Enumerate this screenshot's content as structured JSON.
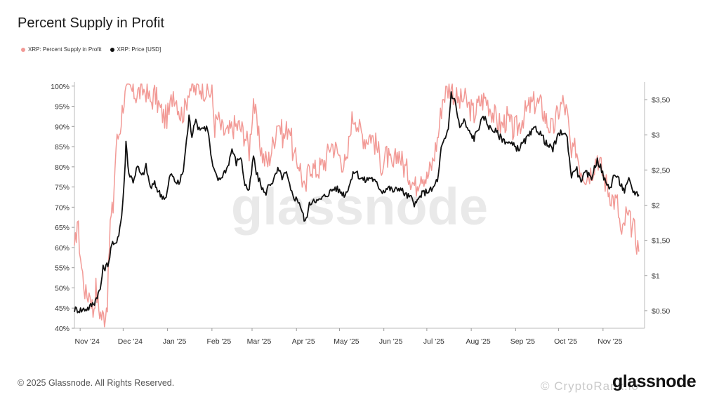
{
  "chart_data": {
    "type": "line",
    "title": "Percent Supply in Profit",
    "watermark": "glassnode",
    "legend_position": "top-left",
    "grid": false,
    "x_tick_labels": [
      "Nov '24",
      "Dec '24",
      "Jan '25",
      "Feb '25",
      "Mar '25",
      "Apr '25",
      "May '25",
      "Jun '25",
      "Jul '25",
      "Aug '25",
      "Sep '25",
      "Oct '25",
      "Nov '25"
    ],
    "x_range": [
      "2024-10-28",
      "2025-11-30"
    ],
    "y_left": {
      "range": [
        40,
        101
      ],
      "ticks": [
        100,
        95,
        90,
        85,
        80,
        75,
        70,
        65,
        60,
        55,
        50,
        45,
        40
      ],
      "tick_labels": [
        "100%",
        "95%",
        "90%",
        "85%",
        "80%",
        "75%",
        "70%",
        "65%",
        "60%",
        "55%",
        "50%",
        "45%",
        "40%"
      ]
    },
    "y_right": {
      "range": [
        0.25,
        3.75
      ],
      "ticks": [
        3.5,
        3,
        2.5,
        2,
        1.5,
        1,
        0.5
      ],
      "tick_labels": [
        "$3,50",
        "$3",
        "$2,50",
        "$2",
        "$1,50",
        "$1",
        "$0.50"
      ]
    },
    "series": [
      {
        "name": "XRP: Percent Supply in Profit",
        "axis": "left",
        "color": "#f29a96",
        "points": [
          [
            "2024-10-28",
            58
          ],
          [
            "2024-10-30",
            67
          ],
          [
            "2024-11-02",
            55
          ],
          [
            "2024-11-05",
            48
          ],
          [
            "2024-11-08",
            49
          ],
          [
            "2024-11-10",
            44
          ],
          [
            "2024-11-12",
            50
          ],
          [
            "2024-11-14",
            45
          ],
          [
            "2024-11-16",
            43
          ],
          [
            "2024-11-18",
            43
          ],
          [
            "2024-11-20",
            47
          ],
          [
            "2024-11-22",
            66
          ],
          [
            "2024-11-24",
            70
          ],
          [
            "2024-11-26",
            85
          ],
          [
            "2024-11-29",
            90
          ],
          [
            "2024-12-01",
            96
          ],
          [
            "2024-12-03",
            98
          ],
          [
            "2024-12-06",
            99
          ],
          [
            "2024-12-10",
            98
          ],
          [
            "2024-12-14",
            99
          ],
          [
            "2024-12-17",
            99
          ],
          [
            "2024-12-20",
            96
          ],
          [
            "2024-12-23",
            98
          ],
          [
            "2024-12-27",
            94
          ],
          [
            "2024-12-30",
            92
          ],
          [
            "2025-01-02",
            93
          ],
          [
            "2025-01-05",
            99
          ],
          [
            "2025-01-08",
            96
          ],
          [
            "2025-01-10",
            93
          ],
          [
            "2025-01-13",
            94
          ],
          [
            "2025-01-16",
            100
          ],
          [
            "2025-01-20",
            99
          ],
          [
            "2025-01-24",
            100
          ],
          [
            "2025-01-28",
            99
          ],
          [
            "2025-02-01",
            98
          ],
          [
            "2025-02-03",
            90
          ],
          [
            "2025-02-05",
            92
          ],
          [
            "2025-02-08",
            89
          ],
          [
            "2025-02-12",
            88
          ],
          [
            "2025-02-16",
            90
          ],
          [
            "2025-02-20",
            90
          ],
          [
            "2025-02-24",
            88
          ],
          [
            "2025-02-27",
            84
          ],
          [
            "2025-03-02",
            97
          ],
          [
            "2025-03-05",
            88
          ],
          [
            "2025-03-09",
            82
          ],
          [
            "2025-03-12",
            81
          ],
          [
            "2025-03-16",
            86
          ],
          [
            "2025-03-19",
            92
          ],
          [
            "2025-03-23",
            87
          ],
          [
            "2025-03-27",
            91
          ],
          [
            "2025-03-30",
            82
          ],
          [
            "2025-04-03",
            81
          ],
          [
            "2025-04-07",
            73
          ],
          [
            "2025-04-10",
            81
          ],
          [
            "2025-04-14",
            79
          ],
          [
            "2025-04-18",
            80
          ],
          [
            "2025-04-22",
            82
          ],
          [
            "2025-04-25",
            86
          ],
          [
            "2025-04-29",
            84
          ],
          [
            "2025-05-02",
            82
          ],
          [
            "2025-05-06",
            80
          ],
          [
            "2025-05-09",
            91
          ],
          [
            "2025-05-12",
            93
          ],
          [
            "2025-05-15",
            89
          ],
          [
            "2025-05-19",
            87
          ],
          [
            "2025-05-23",
            88
          ],
          [
            "2025-05-27",
            85
          ],
          [
            "2025-05-31",
            80
          ],
          [
            "2025-06-03",
            83
          ],
          [
            "2025-06-07",
            79
          ],
          [
            "2025-06-11",
            84
          ],
          [
            "2025-06-15",
            80
          ],
          [
            "2025-06-19",
            78
          ],
          [
            "2025-06-23",
            75
          ],
          [
            "2025-06-27",
            79
          ],
          [
            "2025-07-01",
            77
          ],
          [
            "2025-07-05",
            81
          ],
          [
            "2025-07-09",
            88
          ],
          [
            "2025-07-12",
            97
          ],
          [
            "2025-07-15",
            99
          ],
          [
            "2025-07-18",
            100
          ],
          [
            "2025-07-21",
            97
          ],
          [
            "2025-07-24",
            96
          ],
          [
            "2025-07-27",
            97
          ],
          [
            "2025-07-30",
            95
          ],
          [
            "2025-08-03",
            93
          ],
          [
            "2025-08-07",
            96
          ],
          [
            "2025-08-11",
            97
          ],
          [
            "2025-08-14",
            95
          ],
          [
            "2025-08-18",
            92
          ],
          [
            "2025-08-22",
            90
          ],
          [
            "2025-08-26",
            92
          ],
          [
            "2025-08-30",
            89
          ],
          [
            "2025-09-03",
            90
          ],
          [
            "2025-09-07",
            93
          ],
          [
            "2025-09-11",
            95
          ],
          [
            "2025-09-15",
            96
          ],
          [
            "2025-09-19",
            95
          ],
          [
            "2025-09-23",
            91
          ],
          [
            "2025-09-27",
            89
          ],
          [
            "2025-10-01",
            94
          ],
          [
            "2025-10-04",
            96
          ],
          [
            "2025-10-07",
            93
          ],
          [
            "2025-10-10",
            82
          ],
          [
            "2025-10-13",
            85
          ],
          [
            "2025-10-16",
            80
          ],
          [
            "2025-10-20",
            78
          ],
          [
            "2025-10-24",
            79
          ],
          [
            "2025-10-28",
            83
          ],
          [
            "2025-11-01",
            78
          ],
          [
            "2025-11-04",
            75
          ],
          [
            "2025-11-08",
            72
          ],
          [
            "2025-11-11",
            71
          ],
          [
            "2025-11-14",
            62
          ],
          [
            "2025-11-17",
            68
          ],
          [
            "2025-11-20",
            66
          ],
          [
            "2025-11-23",
            64
          ],
          [
            "2025-11-26",
            59
          ]
        ]
      },
      {
        "name": "XRP: Price [USD]",
        "axis": "right",
        "color": "#111111",
        "points": [
          [
            "2024-10-28",
            0.52
          ],
          [
            "2024-11-02",
            0.51
          ],
          [
            "2024-11-07",
            0.54
          ],
          [
            "2024-11-11",
            0.62
          ],
          [
            "2024-11-13",
            0.72
          ],
          [
            "2024-11-15",
            0.8
          ],
          [
            "2024-11-17",
            1.1
          ],
          [
            "2024-11-19",
            1.12
          ],
          [
            "2024-11-21",
            1.2
          ],
          [
            "2024-11-23",
            1.45
          ],
          [
            "2024-11-25",
            1.42
          ],
          [
            "2024-11-28",
            1.6
          ],
          [
            "2024-11-30",
            1.85
          ],
          [
            "2024-12-02",
            2.4
          ],
          [
            "2024-12-03",
            2.9
          ],
          [
            "2024-12-05",
            2.45
          ],
          [
            "2024-12-08",
            2.35
          ],
          [
            "2024-12-11",
            2.55
          ],
          [
            "2024-12-14",
            2.4
          ],
          [
            "2024-12-17",
            2.55
          ],
          [
            "2024-12-20",
            2.25
          ],
          [
            "2024-12-23",
            2.3
          ],
          [
            "2024-12-27",
            2.15
          ],
          [
            "2024-12-31",
            2.1
          ],
          [
            "2025-01-03",
            2.45
          ],
          [
            "2025-01-06",
            2.35
          ],
          [
            "2025-01-09",
            2.3
          ],
          [
            "2025-01-12",
            2.5
          ],
          [
            "2025-01-15",
            3.05
          ],
          [
            "2025-01-16",
            3.25
          ],
          [
            "2025-01-18",
            3.0
          ],
          [
            "2025-01-20",
            3.2
          ],
          [
            "2025-01-23",
            3.1
          ],
          [
            "2025-01-26",
            3.1
          ],
          [
            "2025-01-29",
            3.1
          ],
          [
            "2025-02-01",
            2.6
          ],
          [
            "2025-02-03",
            2.45
          ],
          [
            "2025-02-06",
            2.35
          ],
          [
            "2025-02-09",
            2.45
          ],
          [
            "2025-02-12",
            2.55
          ],
          [
            "2025-02-15",
            2.8
          ],
          [
            "2025-02-18",
            2.6
          ],
          [
            "2025-02-21",
            2.7
          ],
          [
            "2025-02-24",
            2.3
          ],
          [
            "2025-02-27",
            2.2
          ],
          [
            "2025-03-02",
            2.7
          ],
          [
            "2025-03-04",
            2.45
          ],
          [
            "2025-03-07",
            2.3
          ],
          [
            "2025-03-10",
            2.15
          ],
          [
            "2025-03-13",
            2.3
          ],
          [
            "2025-03-16",
            2.35
          ],
          [
            "2025-03-19",
            2.5
          ],
          [
            "2025-03-22",
            2.4
          ],
          [
            "2025-03-25",
            2.45
          ],
          [
            "2025-03-28",
            2.2
          ],
          [
            "2025-03-31",
            2.1
          ],
          [
            "2025-04-03",
            2.05
          ],
          [
            "2025-04-07",
            1.75
          ],
          [
            "2025-04-10",
            2.0
          ],
          [
            "2025-04-13",
            2.1
          ],
          [
            "2025-04-16",
            2.05
          ],
          [
            "2025-04-19",
            2.1
          ],
          [
            "2025-04-22",
            2.15
          ],
          [
            "2025-04-25",
            2.2
          ],
          [
            "2025-04-28",
            2.25
          ],
          [
            "2025-05-01",
            2.2
          ],
          [
            "2025-05-05",
            2.15
          ],
          [
            "2025-05-09",
            2.35
          ],
          [
            "2025-05-12",
            2.5
          ],
          [
            "2025-05-15",
            2.4
          ],
          [
            "2025-05-19",
            2.35
          ],
          [
            "2025-05-23",
            2.4
          ],
          [
            "2025-05-27",
            2.3
          ],
          [
            "2025-05-31",
            2.2
          ],
          [
            "2025-06-04",
            2.25
          ],
          [
            "2025-06-08",
            2.2
          ],
          [
            "2025-06-12",
            2.25
          ],
          [
            "2025-06-16",
            2.15
          ],
          [
            "2025-06-20",
            2.1
          ],
          [
            "2025-06-23",
            2.0
          ],
          [
            "2025-06-27",
            2.15
          ],
          [
            "2025-07-01",
            2.2
          ],
          [
            "2025-07-05",
            2.22
          ],
          [
            "2025-07-09",
            2.4
          ],
          [
            "2025-07-11",
            2.8
          ],
          [
            "2025-07-14",
            2.95
          ],
          [
            "2025-07-16",
            3.1
          ],
          [
            "2025-07-18",
            3.6
          ],
          [
            "2025-07-21",
            3.45
          ],
          [
            "2025-07-24",
            3.1
          ],
          [
            "2025-07-27",
            3.2
          ],
          [
            "2025-07-30",
            3.05
          ],
          [
            "2025-08-03",
            2.95
          ],
          [
            "2025-08-07",
            3.15
          ],
          [
            "2025-08-10",
            3.25
          ],
          [
            "2025-08-14",
            3.1
          ],
          [
            "2025-08-18",
            3.05
          ],
          [
            "2025-08-22",
            2.95
          ],
          [
            "2025-08-26",
            2.9
          ],
          [
            "2025-08-30",
            2.85
          ],
          [
            "2025-09-03",
            2.8
          ],
          [
            "2025-09-07",
            2.9
          ],
          [
            "2025-09-11",
            3.0
          ],
          [
            "2025-09-15",
            3.1
          ],
          [
            "2025-09-19",
            3.0
          ],
          [
            "2025-09-23",
            2.85
          ],
          [
            "2025-09-27",
            2.8
          ],
          [
            "2025-10-01",
            3.0
          ],
          [
            "2025-10-04",
            3.05
          ],
          [
            "2025-10-07",
            2.95
          ],
          [
            "2025-10-10",
            2.4
          ],
          [
            "2025-10-13",
            2.55
          ],
          [
            "2025-10-16",
            2.35
          ],
          [
            "2025-10-20",
            2.45
          ],
          [
            "2025-10-24",
            2.4
          ],
          [
            "2025-10-28",
            2.65
          ],
          [
            "2025-10-31",
            2.5
          ],
          [
            "2025-11-03",
            2.3
          ],
          [
            "2025-11-06",
            2.25
          ],
          [
            "2025-11-09",
            2.45
          ],
          [
            "2025-11-12",
            2.35
          ],
          [
            "2025-11-16",
            2.2
          ],
          [
            "2025-11-19",
            2.35
          ],
          [
            "2025-11-22",
            2.2
          ],
          [
            "2025-11-26",
            2.15
          ]
        ]
      }
    ]
  },
  "footer": {
    "copyright": "© 2025 Glassnode. All Rights Reserved.",
    "brand": "glassnode",
    "overlay_text": "© CryptoRank.io"
  }
}
